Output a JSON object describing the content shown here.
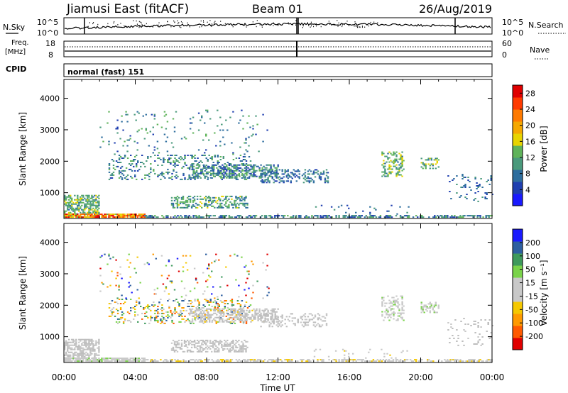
{
  "header": {
    "station": "Jiamusi East (fitACF)",
    "beam": "Beam 01",
    "date": "26/Aug/2019"
  },
  "top_panels": {
    "nsky_label": "N.Sky",
    "nsky_ticks": [
      "10^5",
      "10^0"
    ],
    "nsearch_label": "N.Search",
    "nsearch_ticks": [
      "10^5",
      "10^0"
    ],
    "freq_label_line1": "Freq.",
    "freq_label_line2": "[MHz]",
    "freq_ticks": [
      "18",
      "8"
    ],
    "nave_label": "Nave",
    "nave_ticks": [
      "60",
      "0"
    ],
    "cpid_label": "CPID",
    "cpid_text": "normal (fast) 151"
  },
  "colors": {
    "power_scale": [
      "#1a1aff",
      "#1f3fb0",
      "#2e6e9e",
      "#4a9a7c",
      "#5fb35a",
      "#e8d400",
      "#f5a800",
      "#ff7a00",
      "#ff3a00",
      "#e00000"
    ],
    "velocity_scale": [
      "#e00000",
      "#ff5a00",
      "#ff9a00",
      "#f5c800",
      "#c8c8c8",
      "#c8c8c8",
      "#7ad34a",
      "#3e9a5c",
      "#2d5fa0",
      "#1a1aff"
    ],
    "ground_scatter": "#bdbdbd"
  },
  "chart_data": [
    {
      "type": "heatmap",
      "name": "power",
      "ylabel": "Slant Range [km]",
      "xlabel": "Time UT",
      "x_ticks": [
        "00:00",
        "04:00",
        "08:00",
        "12:00",
        "16:00",
        "20:00",
        "00:00"
      ],
      "xlim_hours": [
        0,
        24
      ],
      "y_ticks": [
        "1000",
        "2000",
        "3000",
        "4000"
      ],
      "ylim_km": [
        180,
        4600
      ],
      "colorbar": {
        "label": "Power [dB]",
        "ticks": [
          "4",
          "8",
          "12",
          "16",
          "20",
          "24",
          "28"
        ],
        "range": [
          0,
          30
        ]
      },
      "regions": [
        {
          "t": [
            0.0,
            2.0
          ],
          "r": [
            300,
            900
          ],
          "density": 0.55,
          "level": [
            8,
            16
          ]
        },
        {
          "t": [
            0.0,
            4.5
          ],
          "r": [
            200,
            320
          ],
          "density": 0.9,
          "level": [
            14,
            30
          ]
        },
        {
          "t": [
            4.5,
            24.0
          ],
          "r": [
            200,
            290
          ],
          "density": 0.5,
          "level": [
            4,
            14
          ]
        },
        {
          "t": [
            2.5,
            10.5
          ],
          "r": [
            1400,
            2200
          ],
          "density": 0.2,
          "level": [
            4,
            14
          ]
        },
        {
          "t": [
            7.0,
            12.0
          ],
          "r": [
            1450,
            1900
          ],
          "density": 0.4,
          "level": [
            4,
            14
          ]
        },
        {
          "t": [
            11.0,
            14.8
          ],
          "r": [
            1300,
            1750
          ],
          "density": 0.3,
          "level": [
            4,
            12
          ]
        },
        {
          "t": [
            6.0,
            10.3
          ],
          "r": [
            500,
            900
          ],
          "density": 0.45,
          "level": [
            6,
            16
          ]
        },
        {
          "t": [
            2.0,
            11.5
          ],
          "r": [
            2200,
            3600
          ],
          "density": 0.03,
          "level": [
            4,
            14
          ]
        },
        {
          "t": [
            17.8,
            19.0
          ],
          "r": [
            1500,
            2300
          ],
          "density": 0.35,
          "level": [
            8,
            18
          ]
        },
        {
          "t": [
            20.0,
            21.0
          ],
          "r": [
            1750,
            2100
          ],
          "density": 0.4,
          "level": [
            8,
            18
          ]
        },
        {
          "t": [
            21.5,
            24.0
          ],
          "r": [
            700,
            1600
          ],
          "density": 0.08,
          "level": [
            4,
            10
          ]
        },
        {
          "t": [
            14.0,
            20.0
          ],
          "r": [
            300,
            600
          ],
          "density": 0.04,
          "level": [
            4,
            10
          ]
        }
      ]
    },
    {
      "type": "heatmap",
      "name": "velocity",
      "ylabel": "Slant Range [km]",
      "xlabel": "Time UT",
      "x_ticks": [
        "00:00",
        "04:00",
        "08:00",
        "12:00",
        "16:00",
        "20:00",
        "00:00"
      ],
      "xlim_hours": [
        0,
        24
      ],
      "y_ticks": [
        "1000",
        "2000",
        "3000",
        "4000"
      ],
      "ylim_km": [
        180,
        4600
      ],
      "colorbar": {
        "label": "Velocity [m s⁻¹]",
        "ticks": [
          "200",
          "100",
          "50",
          "15",
          "-15",
          "-50",
          "-100",
          "-200"
        ],
        "range": [
          -250,
          250
        ]
      },
      "regions": [
        {
          "t": [
            0.0,
            2.0
          ],
          "r": [
            300,
            900
          ],
          "density": 0.55,
          "level": [
            -20,
            20
          ],
          "ground": true
        },
        {
          "t": [
            0.0,
            4.5
          ],
          "r": [
            200,
            320
          ],
          "density": 0.9,
          "level": [
            15,
            60
          ]
        },
        {
          "t": [
            4.5,
            24.0
          ],
          "r": [
            200,
            290
          ],
          "density": 0.5,
          "level": [
            -60,
            -15
          ]
        },
        {
          "t": [
            2.5,
            10.5
          ],
          "r": [
            1400,
            2200
          ],
          "density": 0.2,
          "level": [
            -200,
            200
          ]
        },
        {
          "t": [
            7.0,
            12.0
          ],
          "r": [
            1450,
            1900
          ],
          "density": 0.4,
          "level": [
            -60,
            20
          ],
          "ground": true
        },
        {
          "t": [
            11.0,
            14.8
          ],
          "r": [
            1300,
            1750
          ],
          "density": 0.3,
          "level": [
            -40,
            15
          ],
          "ground": true
        },
        {
          "t": [
            6.0,
            10.3
          ],
          "r": [
            500,
            900
          ],
          "density": 0.45,
          "level": [
            -20,
            20
          ],
          "ground": true
        },
        {
          "t": [
            2.0,
            11.5
          ],
          "r": [
            2200,
            3600
          ],
          "density": 0.03,
          "level": [
            -250,
            250
          ]
        },
        {
          "t": [
            17.8,
            19.0
          ],
          "r": [
            1500,
            2300
          ],
          "density": 0.35,
          "level": [
            -20,
            60
          ]
        },
        {
          "t": [
            20.0,
            21.0
          ],
          "r": [
            1750,
            2100
          ],
          "density": 0.4,
          "level": [
            -20,
            60
          ]
        },
        {
          "t": [
            21.5,
            24.0
          ],
          "r": [
            700,
            1600
          ],
          "density": 0.08,
          "level": [
            -20,
            20
          ],
          "ground": true
        },
        {
          "t": [
            14.0,
            20.0
          ],
          "r": [
            300,
            600
          ],
          "density": 0.04,
          "level": [
            -60,
            20
          ]
        }
      ]
    }
  ]
}
